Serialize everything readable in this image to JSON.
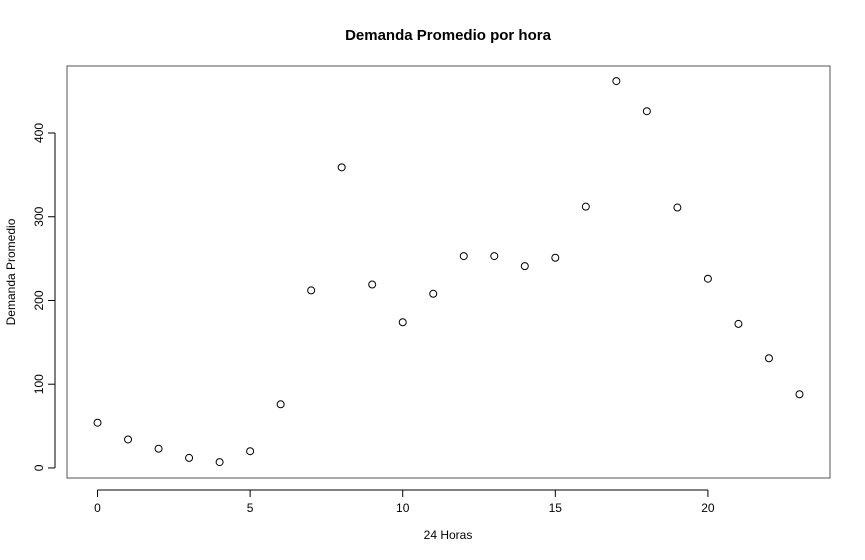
{
  "chart_data": {
    "type": "scatter",
    "title": "Demanda Promedio por hora",
    "xlabel": "24 Horas",
    "ylabel": "Demanda Promedio",
    "x": [
      0,
      1,
      2,
      3,
      4,
      5,
      6,
      7,
      8,
      9,
      10,
      11,
      12,
      13,
      14,
      15,
      16,
      17,
      18,
      19,
      20,
      21,
      22,
      23
    ],
    "y": [
      54,
      34,
      23,
      12,
      7,
      20,
      76,
      212,
      359,
      219,
      174,
      208,
      253,
      253,
      241,
      251,
      312,
      462,
      426,
      311,
      226,
      172,
      131,
      88
    ],
    "xlim": [
      -1,
      24
    ],
    "ylim": [
      -12,
      480
    ],
    "x_ticks": [
      0,
      5,
      10,
      15,
      20
    ],
    "y_ticks": [
      0,
      100,
      200,
      300,
      400
    ],
    "x_tick_labels": [
      "0",
      "5",
      "10",
      "15",
      "20"
    ],
    "y_tick_labels": [
      "0",
      "100",
      "200",
      "300",
      "400"
    ],
    "grid": false,
    "legend": "none",
    "marker": "open-circle",
    "point_color": "#000000"
  }
}
